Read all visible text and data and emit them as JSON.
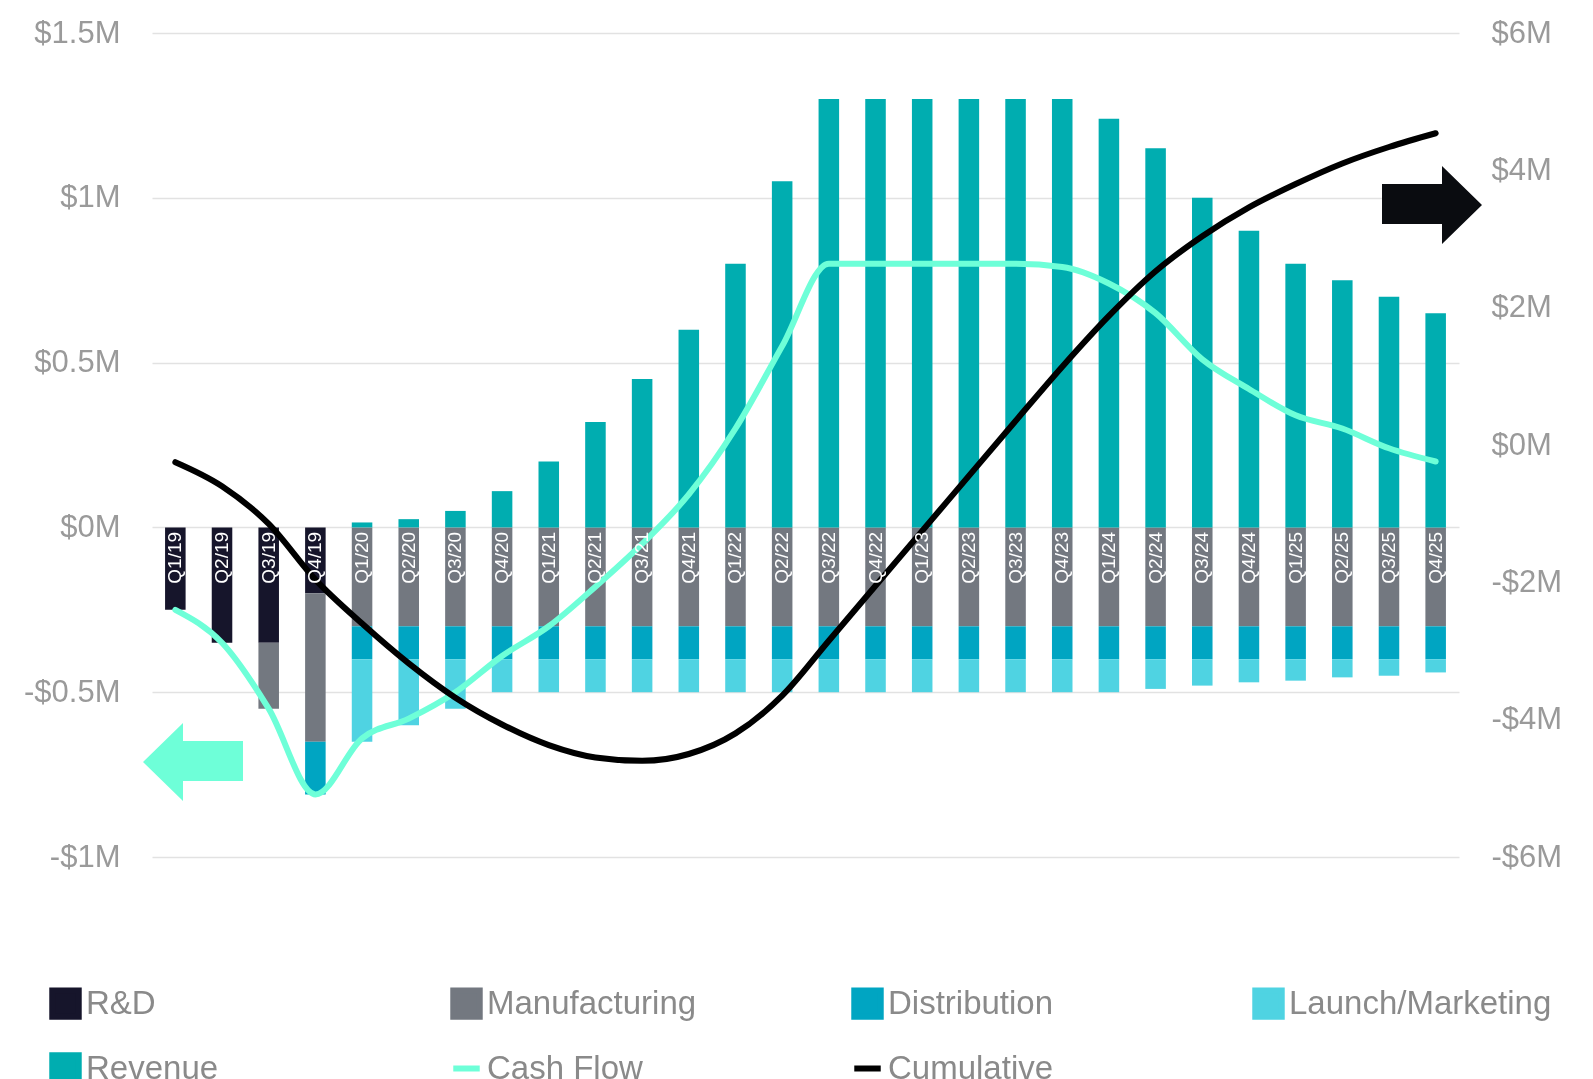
{
  "chart_data": {
    "type": "bar",
    "stacked": true,
    "categories": [
      "Q1/19",
      "Q2/19",
      "Q3/19",
      "Q4/19",
      "Q1/20",
      "Q2/20",
      "Q3/20",
      "Q4/20",
      "Q1/21",
      "Q2/21",
      "Q3/21",
      "Q4/21",
      "Q1/22",
      "Q2/22",
      "Q3/22",
      "Q4/22",
      "Q1/23",
      "Q2/23",
      "Q3/23",
      "Q4/23",
      "Q1/24",
      "Q2/24",
      "Q3/24",
      "Q4/24",
      "Q1/25",
      "Q2/25",
      "Q3/25",
      "Q4/25"
    ],
    "series": [
      {
        "name": "R&D",
        "color": "#16152b",
        "values": [
          -0.25,
          -0.35,
          -0.35,
          -0.2,
          null,
          null,
          null,
          null,
          null,
          null,
          null,
          null,
          null,
          null,
          null,
          null,
          null,
          null,
          null,
          null,
          null,
          null,
          null,
          null,
          null,
          null,
          null,
          null
        ]
      },
      {
        "name": "Manufacturing",
        "color": "#737880",
        "values": [
          null,
          null,
          -0.2,
          -0.45,
          -0.3,
          -0.3,
          -0.3,
          -0.3,
          -0.3,
          -0.3,
          -0.3,
          -0.3,
          -0.3,
          -0.3,
          -0.3,
          -0.3,
          -0.3,
          -0.3,
          -0.3,
          -0.3,
          -0.3,
          -0.3,
          -0.3,
          -0.3,
          -0.3,
          -0.3,
          -0.3,
          -0.3
        ]
      },
      {
        "name": "Distribution",
        "color": "#00a5c2",
        "values": [
          null,
          null,
          null,
          -0.16,
          -0.1,
          -0.1,
          -0.1,
          -0.1,
          -0.1,
          -0.1,
          -0.1,
          -0.1,
          -0.1,
          -0.1,
          -0.1,
          -0.1,
          -0.1,
          -0.1,
          -0.1,
          -0.1,
          -0.1,
          -0.1,
          -0.1,
          -0.1,
          -0.1,
          -0.1,
          -0.1,
          -0.1
        ]
      },
      {
        "name": "Launch/Marketing",
        "color": "#4fd3e2",
        "values": [
          null,
          null,
          null,
          null,
          -0.25,
          -0.2,
          -0.15,
          -0.1,
          -0.1,
          -0.1,
          -0.1,
          -0.1,
          -0.1,
          -0.1,
          -0.1,
          -0.1,
          -0.1,
          -0.1,
          -0.1,
          -0.1,
          -0.1,
          -0.09,
          -0.08,
          -0.07,
          -0.065,
          -0.055,
          -0.05,
          -0.04
        ]
      },
      {
        "name": "Revenue",
        "color": "#00adb0",
        "values": [
          null,
          null,
          null,
          null,
          0.015,
          0.025,
          0.05,
          0.11,
          0.2,
          0.32,
          0.45,
          0.6,
          0.8,
          1.05,
          1.3,
          1.3,
          1.3,
          1.3,
          1.3,
          1.3,
          1.24,
          1.15,
          1.0,
          0.9,
          0.8,
          0.75,
          0.7,
          0.65
        ]
      },
      {
        "name": "Cash Flow",
        "type": "line",
        "color": "#6effd8",
        "values": [
          -0.25,
          -0.35,
          -0.55,
          -0.81,
          -0.64,
          -0.58,
          -0.5,
          -0.39,
          -0.3,
          -0.18,
          -0.05,
          0.1,
          0.3,
          0.55,
          0.8,
          0.8,
          0.8,
          0.8,
          0.8,
          0.79,
          0.74,
          0.65,
          0.51,
          0.42,
          0.34,
          0.3,
          0.24,
          0.2
        ]
      },
      {
        "name": "Cumulative",
        "type": "line",
        "axis": "y2",
        "color": "#000000",
        "values": [
          -0.25,
          -0.6,
          -1.15,
          -1.96,
          -2.6,
          -3.18,
          -3.68,
          -4.07,
          -4.37,
          -4.55,
          -4.6,
          -4.5,
          -4.2,
          -3.65,
          -2.85,
          -2.05,
          -1.25,
          -0.45,
          0.35,
          1.14,
          1.88,
          2.53,
          3.04,
          3.46,
          3.8,
          4.1,
          4.34,
          4.54
        ]
      }
    ],
    "ylim": [
      -1,
      1.5
    ],
    "yticks": [
      {
        "value": -1,
        "label": "-$1M"
      },
      {
        "value": -0.5,
        "label": "-$0.5M"
      },
      {
        "value": 0,
        "label": "$0M"
      },
      {
        "value": 0.5,
        "label": "$0.5M"
      },
      {
        "value": 1,
        "label": "$1M"
      },
      {
        "value": 1.5,
        "label": "$1.5M"
      }
    ],
    "y2lim": [
      -6,
      6
    ],
    "y2ticks": [
      {
        "value": -6,
        "label": "-$6M"
      },
      {
        "value": -4,
        "label": "-$4M"
      },
      {
        "value": -2,
        "label": "-$2M"
      },
      {
        "value": 0,
        "label": "$0M"
      },
      {
        "value": 2,
        "label": "$2M"
      },
      {
        "value": 4,
        "label": "$4M"
      },
      {
        "value": 6,
        "label": "$6M"
      }
    ],
    "grid": "y",
    "legend": "bottom",
    "marker": "none",
    "line_style": "solid"
  }
}
